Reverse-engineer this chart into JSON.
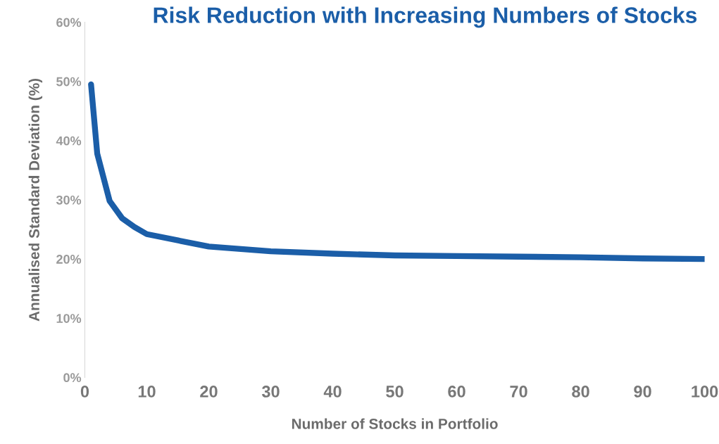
{
  "chart_data": {
    "type": "line",
    "title": "Risk Reduction with Increasing Numbers of Stocks",
    "xlabel": "Number of Stocks in Portfolio",
    "ylabel": "Annualised Standard Deviation (%)",
    "x": [
      1,
      2,
      4,
      6,
      8,
      10,
      20,
      30,
      40,
      50,
      60,
      70,
      80,
      90,
      100
    ],
    "series": [
      {
        "color": "#1b5ea8",
        "values": [
          49.5,
          37.8,
          29.8,
          26.9,
          25.4,
          24.2,
          22.1,
          21.3,
          20.9,
          20.6,
          20.5,
          20.4,
          20.3,
          20.1,
          20.0
        ]
      }
    ],
    "xlim": [
      0,
      100
    ],
    "xticks": [
      0,
      10,
      20,
      30,
      40,
      50,
      60,
      70,
      80,
      90,
      100
    ],
    "ylim": [
      0,
      60
    ],
    "yticks": [
      {
        "value": 0,
        "label": "0%"
      },
      {
        "value": 10,
        "label": "10%"
      },
      {
        "value": 20,
        "label": "20%"
      },
      {
        "value": 30,
        "label": "30%"
      },
      {
        "value": 40,
        "label": "40%"
      },
      {
        "value": 50,
        "label": "50%"
      },
      {
        "value": 60,
        "label": "60%"
      }
    ],
    "grid": false,
    "marker": "none",
    "line_style": "solid"
  }
}
